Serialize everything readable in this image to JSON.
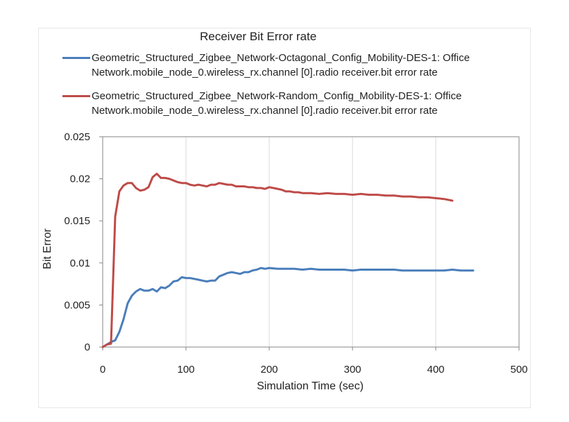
{
  "colors": {
    "series1": "#4a7ebb",
    "series2": "#be4b48",
    "grid": "#d9d9d9",
    "axis": "#868686"
  },
  "chart_data": {
    "type": "line",
    "title": "Receiver Bit Error rate",
    "xlabel": "Simulation Time (sec)",
    "ylabel": "Bit Error",
    "xlim": [
      0,
      500
    ],
    "ylim": [
      0,
      0.025
    ],
    "x_ticks": [
      "0",
      "100",
      "200",
      "300",
      "400",
      "500"
    ],
    "y_ticks": [
      "0",
      "0.005",
      "0.01",
      "0.015",
      "0.02",
      "0.025"
    ],
    "grid": "vertical",
    "legend_position": "top",
    "series": [
      {
        "name": "Geometric_Structured_Zigbee_Network-Octagonal_Config_Mobility-DES-1: Office Network.mobile_node_0.wireless_rx.channel [0].radio receiver.bit error rate",
        "name_line1": "Geometric_Structured_Zigbee_Network-Octagonal_Config_Mobility-DES-1: Office",
        "name_line2": "Network.mobile_node_0.wireless_rx.channel [0].radio receiver.bit error rate",
        "color": "#4a7ebb",
        "points": [
          [
            0,
            0
          ],
          [
            5,
            0.0003
          ],
          [
            10,
            0.0006
          ],
          [
            15,
            0.0008
          ],
          [
            20,
            0.0018
          ],
          [
            25,
            0.0033
          ],
          [
            30,
            0.0052
          ],
          [
            35,
            0.0061
          ],
          [
            40,
            0.0066
          ],
          [
            45,
            0.0069
          ],
          [
            50,
            0.0067
          ],
          [
            55,
            0.0067
          ],
          [
            60,
            0.0069
          ],
          [
            65,
            0.0066
          ],
          [
            70,
            0.0071
          ],
          [
            75,
            0.007
          ],
          [
            80,
            0.0073
          ],
          [
            85,
            0.0078
          ],
          [
            90,
            0.0079
          ],
          [
            95,
            0.0083
          ],
          [
            100,
            0.0082
          ],
          [
            105,
            0.0082
          ],
          [
            110,
            0.0081
          ],
          [
            115,
            0.008
          ],
          [
            120,
            0.0079
          ],
          [
            125,
            0.0078
          ],
          [
            130,
            0.0079
          ],
          [
            135,
            0.0079
          ],
          [
            140,
            0.0084
          ],
          [
            145,
            0.0086
          ],
          [
            150,
            0.0088
          ],
          [
            155,
            0.0089
          ],
          [
            160,
            0.0088
          ],
          [
            165,
            0.0087
          ],
          [
            170,
            0.0089
          ],
          [
            175,
            0.0089
          ],
          [
            180,
            0.0091
          ],
          [
            185,
            0.0092
          ],
          [
            190,
            0.0094
          ],
          [
            195,
            0.0093
          ],
          [
            200,
            0.0094
          ],
          [
            210,
            0.0093
          ],
          [
            220,
            0.0093
          ],
          [
            230,
            0.0093
          ],
          [
            240,
            0.0092
          ],
          [
            250,
            0.0093
          ],
          [
            260,
            0.0092
          ],
          [
            270,
            0.0092
          ],
          [
            280,
            0.0092
          ],
          [
            290,
            0.0092
          ],
          [
            300,
            0.0091
          ],
          [
            310,
            0.0092
          ],
          [
            320,
            0.0092
          ],
          [
            330,
            0.0092
          ],
          [
            340,
            0.0092
          ],
          [
            350,
            0.0092
          ],
          [
            360,
            0.0091
          ],
          [
            370,
            0.0091
          ],
          [
            380,
            0.0091
          ],
          [
            390,
            0.0091
          ],
          [
            400,
            0.0091
          ],
          [
            410,
            0.0091
          ],
          [
            420,
            0.0092
          ],
          [
            430,
            0.0091
          ],
          [
            445,
            0.0091
          ]
        ]
      },
      {
        "name": "Geometric_Structured_Zigbee_Network-Random_Config_Mobility-DES-1: Office Network.mobile_node_0.wireless_rx.channel [0].radio receiver.bit error rate",
        "name_line1": "Geometric_Structured_Zigbee_Network-Random_Config_Mobility-DES-1: Office",
        "name_line2": "Network.mobile_node_0.wireless_rx.channel [0].radio receiver.bit error rate",
        "color": "#be4b48",
        "points": [
          [
            0,
            0
          ],
          [
            5,
            0.0003
          ],
          [
            10,
            0.0004
          ],
          [
            15,
            0.0155
          ],
          [
            20,
            0.0185
          ],
          [
            25,
            0.0192
          ],
          [
            30,
            0.0195
          ],
          [
            35,
            0.0195
          ],
          [
            40,
            0.0189
          ],
          [
            45,
            0.0186
          ],
          [
            50,
            0.0187
          ],
          [
            55,
            0.019
          ],
          [
            60,
            0.0202
          ],
          [
            65,
            0.0206
          ],
          [
            70,
            0.0201
          ],
          [
            75,
            0.0201
          ],
          [
            80,
            0.02
          ],
          [
            85,
            0.0198
          ],
          [
            90,
            0.0196
          ],
          [
            95,
            0.0195
          ],
          [
            100,
            0.0195
          ],
          [
            105,
            0.0193
          ],
          [
            110,
            0.0192
          ],
          [
            115,
            0.0193
          ],
          [
            120,
            0.0192
          ],
          [
            125,
            0.0191
          ],
          [
            130,
            0.0193
          ],
          [
            135,
            0.0193
          ],
          [
            140,
            0.0195
          ],
          [
            145,
            0.0194
          ],
          [
            150,
            0.0193
          ],
          [
            155,
            0.0193
          ],
          [
            160,
            0.0191
          ],
          [
            165,
            0.0191
          ],
          [
            170,
            0.0191
          ],
          [
            175,
            0.019
          ],
          [
            180,
            0.019
          ],
          [
            185,
            0.0189
          ],
          [
            190,
            0.0189
          ],
          [
            195,
            0.0188
          ],
          [
            200,
            0.019
          ],
          [
            205,
            0.0189
          ],
          [
            210,
            0.0188
          ],
          [
            215,
            0.0187
          ],
          [
            220,
            0.0185
          ],
          [
            225,
            0.0185
          ],
          [
            230,
            0.0184
          ],
          [
            235,
            0.0184
          ],
          [
            240,
            0.0183
          ],
          [
            250,
            0.0183
          ],
          [
            260,
            0.0182
          ],
          [
            270,
            0.0183
          ],
          [
            280,
            0.0182
          ],
          [
            290,
            0.0182
          ],
          [
            300,
            0.0181
          ],
          [
            310,
            0.0182
          ],
          [
            320,
            0.0181
          ],
          [
            330,
            0.0181
          ],
          [
            340,
            0.018
          ],
          [
            350,
            0.018
          ],
          [
            360,
            0.0179
          ],
          [
            370,
            0.0179
          ],
          [
            380,
            0.0178
          ],
          [
            390,
            0.0178
          ],
          [
            400,
            0.0177
          ],
          [
            410,
            0.0176
          ],
          [
            420,
            0.0174
          ]
        ]
      }
    ]
  }
}
